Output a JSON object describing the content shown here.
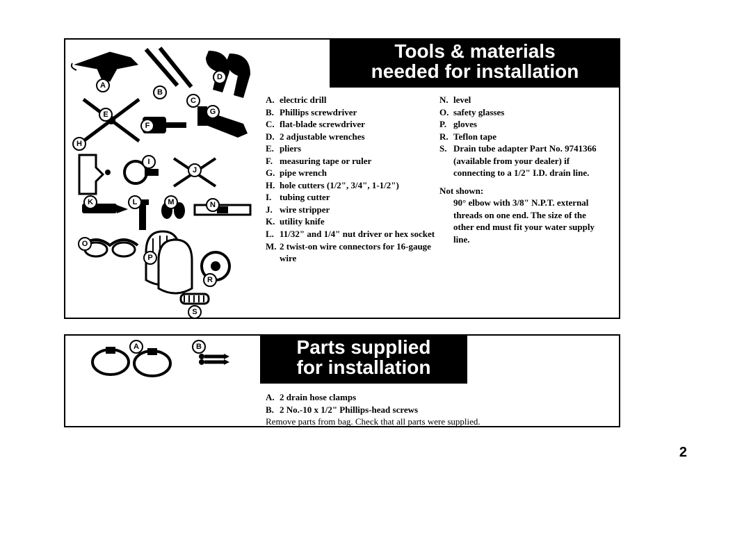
{
  "page_number": "2",
  "panel1": {
    "header_line1": "Tools & materials",
    "header_line2": "needed for installation",
    "labels": {
      "A": "A",
      "B": "B",
      "C": "C",
      "D": "D",
      "E": "E",
      "F": "F",
      "G": "G",
      "H": "H",
      "I": "I",
      "J": "J",
      "K": "K",
      "L": "L",
      "M": "M",
      "N": "N",
      "O": "O",
      "P": "P",
      "R": "R",
      "S": "S"
    },
    "col1": [
      {
        "l": "A.",
        "t": "electric drill"
      },
      {
        "l": "B.",
        "t": "Phillips screwdriver"
      },
      {
        "l": "C.",
        "t": "flat-blade screwdriver"
      },
      {
        "l": "D.",
        "t": "2 adjustable wrenches"
      },
      {
        "l": "E.",
        "t": "pliers"
      },
      {
        "l": "F.",
        "t": "measuring tape or ruler"
      },
      {
        "l": "G.",
        "t": "pipe wrench"
      },
      {
        "l": "H.",
        "t": "hole cutters (1/2\", 3/4\", 1-1/2\")"
      },
      {
        "l": "I.",
        "t": "tubing cutter"
      },
      {
        "l": "J.",
        "t": "wire stripper"
      },
      {
        "l": "K.",
        "t": "utility knife"
      },
      {
        "l": "L.",
        "t": "11/32\" and 1/4\" nut driver or hex socket"
      },
      {
        "l": "M.",
        "t": "2 twist-on wire connectors for 16-gauge wire"
      }
    ],
    "col2": [
      {
        "l": "N.",
        "t": "level"
      },
      {
        "l": "O.",
        "t": "safety glasses"
      },
      {
        "l": "P.",
        "t": "gloves"
      },
      {
        "l": "R.",
        "t": "Teflon tape"
      },
      {
        "l": "S.",
        "t": "Drain tube adapter Part No. 9741366 (available from your dealer) if connecting to a 1/2\" I.D. drain line."
      }
    ],
    "not_shown_header": "Not shown:",
    "not_shown_text": "90° elbow with 3/8\" N.P.T. external threads on one end. The size of the other end must fit your water supply line."
  },
  "panel2": {
    "header_line1": "Parts supplied",
    "header_line2": "for installation",
    "labels": {
      "A": "A",
      "B": "B"
    },
    "items": [
      {
        "l": "A.",
        "t": "2 drain hose clamps"
      },
      {
        "l": "B.",
        "t": "2 No.-10 x 1/2\" Phillips-head screws"
      }
    ],
    "note": "Remove parts from bag. Check that all parts were supplied."
  },
  "style": {
    "page_bg": "#ffffff",
    "ink": "#000000",
    "header_bg": "#000000",
    "header_fg": "#ffffff",
    "body_font": "Times New Roman",
    "header_font": "Arial",
    "header_fontsize": 28,
    "list_fontsize": 13
  }
}
